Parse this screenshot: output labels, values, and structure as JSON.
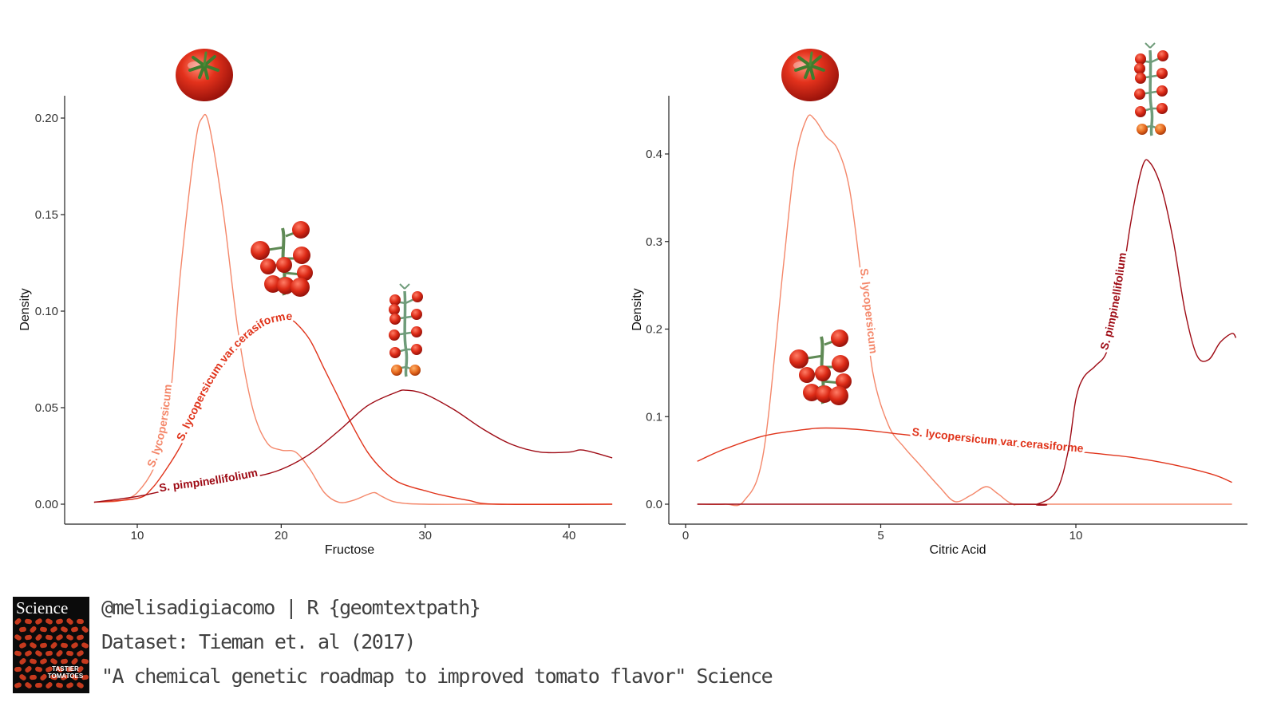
{
  "chart_data": [
    {
      "type": "line",
      "subtype": "density",
      "xlabel": "Fructose",
      "ylabel": "Density",
      "xlim": [
        5,
        43
      ],
      "ylim": [
        0,
        0.21
      ],
      "x_ticks": [
        10,
        20,
        30,
        40
      ],
      "y_ticks": [
        0.0,
        0.05,
        0.1,
        0.15,
        0.2
      ],
      "y_tick_labels": [
        "0.00",
        "0.05",
        "0.10",
        "0.15",
        "0.20"
      ],
      "grid": false,
      "legend": "none (labels on lines)",
      "series": [
        {
          "name": "S. lycopersicum",
          "color": "#f4876a",
          "x": [
            7,
            10,
            12,
            13,
            14,
            14.5,
            15,
            16,
            17,
            18,
            19,
            20,
            21,
            22,
            23,
            24,
            25,
            26,
            26.5,
            27,
            28,
            30,
            35,
            43
          ],
          "y": [
            0.001,
            0.006,
            0.04,
            0.12,
            0.185,
            0.2,
            0.196,
            0.15,
            0.09,
            0.05,
            0.032,
            0.028,
            0.027,
            0.018,
            0.006,
            0.001,
            0.002,
            0.005,
            0.006,
            0.004,
            0.001,
            0.0,
            0.0,
            0.0
          ],
          "label_at": 12
        },
        {
          "name": "S. lycopersicum var cerasiforme",
          "color": "#e0341b",
          "x": [
            7,
            10,
            11,
            12,
            13,
            14,
            15,
            16,
            17,
            18,
            19,
            20,
            20.5,
            21,
            22,
            23,
            24,
            25,
            26,
            27,
            28,
            29,
            30,
            31,
            33,
            35,
            43
          ],
          "y": [
            0.001,
            0.003,
            0.008,
            0.018,
            0.03,
            0.045,
            0.06,
            0.072,
            0.081,
            0.088,
            0.093,
            0.095,
            0.0955,
            0.094,
            0.085,
            0.07,
            0.055,
            0.04,
            0.027,
            0.018,
            0.012,
            0.009,
            0.007,
            0.005,
            0.002,
            0.0,
            0.0
          ],
          "label_at": 16
        },
        {
          "name": "S. pimpinellifolium",
          "color": "#9e0a14",
          "x": [
            7,
            10,
            12,
            15,
            18,
            20,
            22,
            24,
            26,
            28,
            28.7,
            30,
            32,
            34,
            36,
            38,
            40,
            41,
            43
          ],
          "y": [
            0.001,
            0.004,
            0.007,
            0.01,
            0.014,
            0.018,
            0.026,
            0.038,
            0.051,
            0.058,
            0.059,
            0.057,
            0.049,
            0.039,
            0.031,
            0.027,
            0.027,
            0.028,
            0.024
          ],
          "label_at": 15
        }
      ]
    },
    {
      "type": "line",
      "subtype": "density",
      "xlabel": "Citric Acid",
      "ylabel": "Density",
      "xlim": [
        -0.3,
        14.3
      ],
      "ylim": [
        0,
        0.46
      ],
      "x_ticks": [
        0,
        5,
        10
      ],
      "y_ticks": [
        0.0,
        0.1,
        0.2,
        0.3,
        0.4
      ],
      "y_tick_labels": [
        "0.0",
        "0.1",
        "0.2",
        "0.3",
        "0.4"
      ],
      "grid": false,
      "legend": "none (labels on lines)",
      "series": [
        {
          "name": "S. lycopersicum",
          "color": "#f4876a",
          "x": [
            0.3,
            1.0,
            1.5,
            2.0,
            2.5,
            2.8,
            3.1,
            3.3,
            3.6,
            3.9,
            4.2,
            4.5,
            4.8,
            5.2,
            5.6,
            6.0,
            6.5,
            6.9,
            7.3,
            7.7,
            8.0,
            8.4,
            9.0,
            14
          ],
          "y": [
            0.0,
            0.0,
            0.004,
            0.06,
            0.27,
            0.39,
            0.44,
            0.44,
            0.42,
            0.405,
            0.36,
            0.26,
            0.15,
            0.09,
            0.065,
            0.045,
            0.02,
            0.003,
            0.01,
            0.02,
            0.012,
            0.0,
            0.0,
            0.0
          ],
          "label_at": 4.6
        },
        {
          "name": "S. lycopersicum var cerasiforme",
          "color": "#e0341b",
          "x": [
            0.3,
            1.0,
            2.0,
            3.0,
            3.6,
            4.5,
            5.5,
            6.5,
            7.5,
            8.5,
            9.5,
            10.5,
            11.5,
            12.5,
            13.5,
            14.0
          ],
          "y": [
            0.049,
            0.063,
            0.078,
            0.085,
            0.087,
            0.085,
            0.08,
            0.075,
            0.07,
            0.066,
            0.062,
            0.058,
            0.053,
            0.045,
            0.034,
            0.025
          ],
          "label_at": 8
        },
        {
          "name": "S. pimpinellifolium",
          "color": "#9e0a14",
          "x": [
            0.3,
            8.5,
            9.0,
            9.5,
            9.8,
            10.0,
            10.2,
            10.5,
            10.8,
            11.1,
            11.4,
            11.7,
            11.9,
            12.2,
            12.5,
            12.8,
            13.1,
            13.4,
            13.7,
            14.0,
            14.1
          ],
          "y": [
            0.0,
            0.0,
            0.0,
            0.015,
            0.06,
            0.12,
            0.145,
            0.158,
            0.175,
            0.23,
            0.32,
            0.385,
            0.39,
            0.36,
            0.3,
            0.22,
            0.17,
            0.165,
            0.185,
            0.195,
            0.19
          ],
          "label_at": 11.1
        }
      ]
    }
  ],
  "footer": {
    "line1": "@melisadigiacomo | R {geomtextpath}",
    "line2": "Dataset: Tieman et. al (2017)",
    "line3": "\"A chemical genetic roadmap to improved tomato flavor\" Science",
    "cover_title": "Science",
    "cover_tagline": "TASTIER TOMATOES"
  },
  "icons": {
    "big_tomato": "tomato-icon",
    "cherry_cluster": "cherry-tomato-cluster-icon",
    "vine_cluster": "vine-tomato-cluster-icon"
  }
}
